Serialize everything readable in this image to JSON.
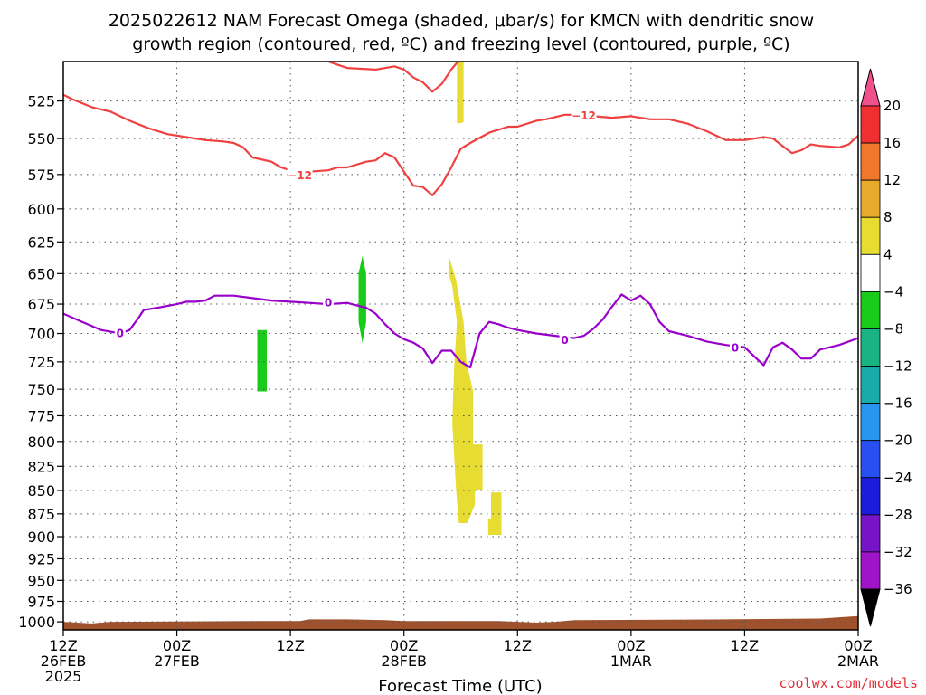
{
  "title_line1": "2025022612 NAM Forecast Omega (shaded, μbar/s) for KMCN with dendritic snow",
  "title_line2": "growth region (contoured, red, ºC) and freezing level (contoured, purple, ºC)",
  "credit": "coolwx.com/models",
  "chart_data": {
    "type": "area",
    "xlabel": "Forecast Time (UTC)",
    "x_range_hours": [
      0,
      84
    ],
    "x_ticks": [
      {
        "h": 0,
        "line1": "12Z",
        "line2": "26FEB",
        "line3": "2025"
      },
      {
        "h": 12,
        "line1": "00Z",
        "line2": "27FEB",
        "line3": ""
      },
      {
        "h": 24,
        "line1": "12Z",
        "line2": "",
        "line3": ""
      },
      {
        "h": 36,
        "line1": "00Z",
        "line2": "28FEB",
        "line3": ""
      },
      {
        "h": 48,
        "line1": "12Z",
        "line2": "",
        "line3": ""
      },
      {
        "h": 60,
        "line1": "00Z",
        "line2": "1MAR",
        "line3": ""
      },
      {
        "h": 72,
        "line1": "12Z",
        "line2": "",
        "line3": ""
      },
      {
        "h": 84,
        "line1": "00Z",
        "line2": "2MAR",
        "line3": ""
      }
    ],
    "y_axis_log_pressure": true,
    "y_range_mb": [
      1010,
      500
    ],
    "y_ticks": [
      525,
      550,
      575,
      600,
      625,
      650,
      675,
      700,
      725,
      750,
      775,
      800,
      825,
      850,
      875,
      900,
      925,
      950,
      975,
      1000
    ],
    "grid": true,
    "dgz_contour": {
      "level": -12,
      "color": "#f04040",
      "labels": [
        {
          "h": 25,
          "p": 575
        },
        {
          "h": 55,
          "p": 534
        }
      ],
      "lower_line": [
        [
          0,
          521
        ],
        [
          1,
          524
        ],
        [
          3,
          529
        ],
        [
          5,
          532
        ],
        [
          7,
          538
        ],
        [
          9,
          543
        ],
        [
          11,
          547
        ],
        [
          13,
          549
        ],
        [
          15,
          551
        ],
        [
          17,
          552
        ],
        [
          18,
          553
        ],
        [
          19,
          556
        ],
        [
          20,
          563
        ],
        [
          22,
          566
        ],
        [
          23,
          570
        ],
        [
          24,
          572
        ],
        [
          26,
          573
        ],
        [
          28,
          572
        ],
        [
          29,
          570
        ],
        [
          30,
          570
        ],
        [
          32,
          566
        ],
        [
          33,
          565
        ],
        [
          34,
          560
        ],
        [
          35,
          563
        ],
        [
          36,
          573
        ],
        [
          37,
          583
        ],
        [
          38,
          584
        ],
        [
          39,
          590
        ],
        [
          40,
          582
        ],
        [
          41,
          570
        ],
        [
          42,
          557
        ],
        [
          43,
          553
        ],
        [
          45,
          546
        ],
        [
          47,
          542
        ],
        [
          48,
          542
        ],
        [
          50,
          538
        ],
        [
          51,
          537
        ],
        [
          53,
          534
        ],
        [
          55,
          534
        ],
        [
          56,
          535
        ],
        [
          58,
          536
        ],
        [
          60,
          535
        ],
        [
          62,
          537
        ],
        [
          64,
          537
        ],
        [
          66,
          540
        ],
        [
          68,
          545
        ],
        [
          70,
          551
        ],
        [
          72,
          551
        ],
        [
          74,
          549
        ],
        [
          75,
          550
        ],
        [
          76,
          555
        ],
        [
          77,
          560
        ],
        [
          78,
          558
        ],
        [
          79,
          554
        ],
        [
          80,
          555
        ],
        [
          82,
          556
        ],
        [
          83,
          554
        ],
        [
          84,
          548
        ]
      ],
      "upper_line": [
        [
          28,
          500
        ],
        [
          29,
          502
        ],
        [
          30,
          504
        ],
        [
          33,
          505
        ],
        [
          35,
          503
        ],
        [
          36,
          505
        ],
        [
          37,
          510
        ],
        [
          38,
          513
        ],
        [
          39,
          519
        ],
        [
          40,
          514
        ],
        [
          41,
          505
        ],
        [
          41.7,
          500
        ]
      ]
    },
    "freezing_contour": {
      "level": 0,
      "color": "#9900cc",
      "labels": [
        {
          "h": 6,
          "p": 699
        },
        {
          "h": 28,
          "p": 673
        },
        {
          "h": 53,
          "p": 705
        },
        {
          "h": 71,
          "p": 712
        }
      ],
      "line": [
        [
          0,
          683
        ],
        [
          2,
          690
        ],
        [
          4,
          697
        ],
        [
          6,
          700
        ],
        [
          7,
          697
        ],
        [
          8,
          686
        ],
        [
          8.5,
          680
        ],
        [
          10,
          678
        ],
        [
          12,
          675
        ],
        [
          13,
          673
        ],
        [
          14,
          673
        ],
        [
          15,
          672
        ],
        [
          16,
          668
        ],
        [
          18,
          668
        ],
        [
          20,
          670
        ],
        [
          22,
          672
        ],
        [
          24,
          673
        ],
        [
          26,
          674
        ],
        [
          28,
          675
        ],
        [
          30,
          674
        ],
        [
          31,
          676
        ],
        [
          32,
          678
        ],
        [
          33,
          683
        ],
        [
          34,
          692
        ],
        [
          35,
          700
        ],
        [
          36,
          705
        ],
        [
          37,
          708
        ],
        [
          38,
          713
        ],
        [
          39,
          726
        ],
        [
          40,
          715
        ],
        [
          41,
          715
        ],
        [
          42,
          725
        ],
        [
          43,
          730
        ],
        [
          44,
          700
        ],
        [
          45,
          690
        ],
        [
          46,
          692
        ],
        [
          47,
          695
        ],
        [
          48,
          697
        ],
        [
          50,
          700
        ],
        [
          52,
          702
        ],
        [
          54,
          704
        ],
        [
          55,
          702
        ],
        [
          56,
          696
        ],
        [
          57,
          688
        ],
        [
          58,
          677
        ],
        [
          59,
          667
        ],
        [
          60,
          672
        ],
        [
          61,
          668
        ],
        [
          62,
          675
        ],
        [
          63,
          690
        ],
        [
          64,
          698
        ],
        [
          66,
          702
        ],
        [
          68,
          707
        ],
        [
          70,
          710
        ],
        [
          72,
          712
        ],
        [
          73,
          720
        ],
        [
          74,
          728
        ],
        [
          75,
          712
        ],
        [
          76,
          708
        ],
        [
          77,
          714
        ],
        [
          78,
          722
        ],
        [
          79,
          722
        ],
        [
          80,
          714
        ],
        [
          82,
          710
        ],
        [
          84,
          704
        ]
      ]
    },
    "omega_regions": [
      {
        "value_range": [
          4,
          8
        ],
        "color": "#e6dc32",
        "outline": [
          [
            41.6,
            500
          ],
          [
            42.3,
            500
          ],
          [
            42.3,
            539
          ],
          [
            41.6,
            540
          ]
        ]
      },
      {
        "value_range": [
          4,
          8
        ],
        "color": "#e6dc32",
        "outline": [
          [
            40.8,
            637
          ],
          [
            41.5,
            655
          ],
          [
            42.3,
            690
          ],
          [
            42.6,
            725
          ],
          [
            43.3,
            752
          ],
          [
            43.3,
            803
          ],
          [
            44.3,
            803
          ],
          [
            44.3,
            880
          ],
          [
            45.2,
            880
          ],
          [
            45.2,
            852
          ],
          [
            46.3,
            852
          ],
          [
            46.3,
            898
          ],
          [
            44.9,
            898
          ],
          [
            44.9,
            880
          ],
          [
            44.3,
            880
          ],
          [
            44.3,
            850
          ],
          [
            43.5,
            850
          ],
          [
            43.5,
            865
          ],
          [
            42.7,
            885
          ],
          [
            41.8,
            885
          ],
          [
            41.5,
            848
          ],
          [
            41.1,
            782
          ],
          [
            41.3,
            730
          ],
          [
            41.6,
            690
          ],
          [
            41.1,
            660
          ],
          [
            40.8,
            652
          ]
        ]
      },
      {
        "value_range": [
          -8,
          -4
        ],
        "color": "#19cc19",
        "outline": [
          [
            31.6,
            636
          ],
          [
            32.0,
            650
          ],
          [
            32.0,
            690
          ],
          [
            31.6,
            708
          ],
          [
            31.2,
            690
          ],
          [
            31.2,
            650
          ]
        ]
      },
      {
        "value_range": [
          -8,
          -4
        ],
        "color": "#19cc19",
        "outline": [
          [
            20.5,
            697
          ],
          [
            21.5,
            697
          ],
          [
            21.5,
            752
          ],
          [
            20.5,
            752
          ]
        ]
      }
    ],
    "terrain": {
      "color": "#a0522d",
      "top_p_start": 1000,
      "top_p_end": 993
    },
    "colorbar": {
      "ticks": [
        20,
        16,
        12,
        8,
        4,
        -4,
        -8,
        -12,
        -16,
        -20,
        -24,
        -28,
        -32,
        -36
      ],
      "colors": [
        "#f0508c",
        "#f03030",
        "#f0782d",
        "#e8aa2d",
        "#e6dc32",
        "#ffffff",
        "#19cc19",
        "#19b482",
        "#19aaaa",
        "#2896f0",
        "#2850f0",
        "#1c1cdc",
        "#7814c8",
        "#a014c8",
        "#aaaaaa",
        "#000000"
      ]
    }
  }
}
